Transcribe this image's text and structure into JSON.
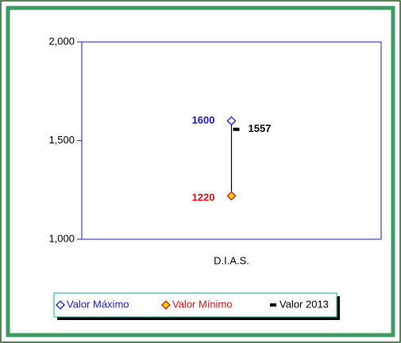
{
  "chart_data": {
    "type": "high-low",
    "categories": [
      "D.I.A.S."
    ],
    "series": [
      {
        "name": "Valor Máximo",
        "color": "#1a1ad6",
        "values": [
          1600
        ]
      },
      {
        "name": "Valor Mínimo",
        "color": "#e01010",
        "values": [
          1220
        ]
      },
      {
        "name": "Valor 2013",
        "color": "#000000",
        "values": [
          1557
        ]
      }
    ],
    "ylim": [
      1000,
      2000
    ],
    "yticks": [
      {
        "value": 1000,
        "label": "1,000"
      },
      {
        "value": 1500,
        "label": "1,500"
      },
      {
        "value": 2000,
        "label": "2,000"
      }
    ],
    "legend": "bottom"
  }
}
